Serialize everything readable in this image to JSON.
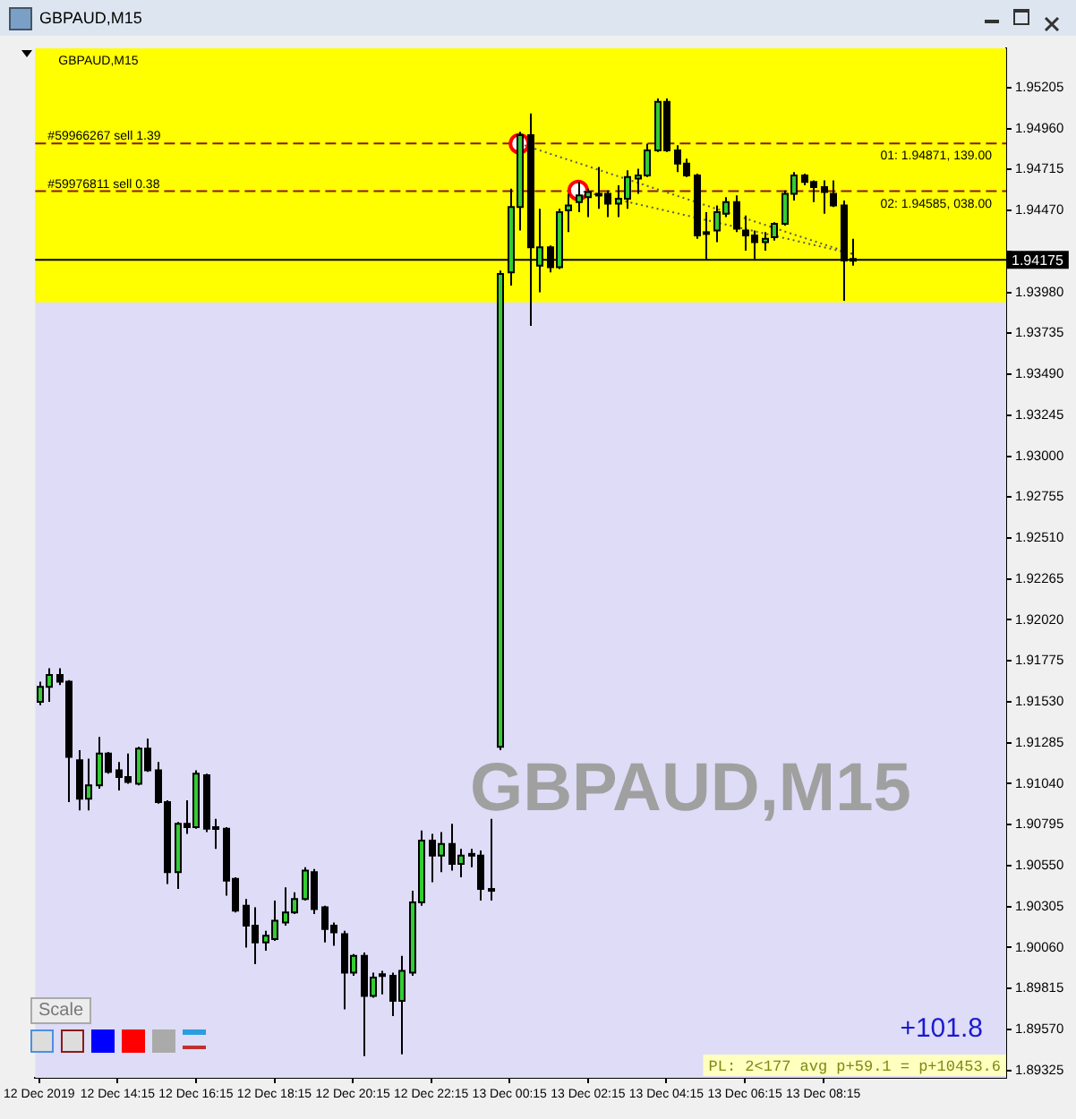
{
  "chart_data": {
    "type": "candlestick",
    "title": "GBPAUD,M15",
    "xlim": [
      "2019-12-12T12:09",
      "2019-12-13T12:55"
    ],
    "xticks": [
      {
        "value": "2019-12-12T12:15",
        "label": "12 Dec 2019"
      },
      {
        "value": "2019-12-12T14:15",
        "label": "12 Dec 14:15"
      },
      {
        "value": "2019-12-12T16:15",
        "label": "12 Dec 16:15"
      },
      {
        "value": "2019-12-12T18:15",
        "label": "12 Dec 18:15"
      },
      {
        "value": "2019-12-12T20:15",
        "label": "12 Dec 20:15"
      },
      {
        "value": "2019-12-12T22:15",
        "label": "12 Dec 22:15"
      },
      {
        "value": "2019-12-13T00:15",
        "label": "13 Dec 00:15"
      },
      {
        "value": "2019-12-13T02:15",
        "label": "13 Dec 02:15"
      },
      {
        "value": "2019-12-13T04:15",
        "label": "13 Dec 04:15"
      },
      {
        "value": "2019-12-13T06:15",
        "label": "13 Dec 06:15"
      },
      {
        "value": "2019-12-13T08:15",
        "label": "13 Dec 08:15"
      }
    ],
    "ylim": [
      1.8928,
      1.9544
    ],
    "yticks": [
      1.95205,
      {
        "value": 1.9496,
        "label": "1.94960"
      },
      1.94715,
      {
        "value": 1.9447,
        "label": "1.94470"
      },
      {
        "value": 1.94225,
        "label": null
      },
      {
        "value": 1.9398,
        "label": "1.93980"
      },
      1.93735,
      {
        "value": 1.9349,
        "label": "1.93490"
      },
      1.93245,
      {
        "value": 1.93,
        "label": "1.93000"
      },
      1.92755,
      {
        "value": 1.9251,
        "label": "1.92510"
      },
      1.92265,
      {
        "value": 1.9202,
        "label": "1.92020"
      },
      1.91775,
      {
        "value": 1.9153,
        "label": "1.91530"
      },
      1.91285,
      {
        "value": 1.9104,
        "label": "1.91040"
      },
      1.90795,
      {
        "value": 1.9055,
        "label": "1.90550"
      },
      1.90305,
      {
        "value": 1.9006,
        "label": "1.90060"
      },
      1.89815,
      {
        "value": 1.8957,
        "label": "1.89570"
      },
      1.89325
    ],
    "grid": false,
    "bands": [
      {
        "axis": "y",
        "from": 1.9392,
        "to": 1.9544,
        "color": "#ffff00"
      }
    ],
    "ref_lines": [
      {
        "axis": "y",
        "value": 1.94871,
        "label": "#59966267 sell 1.39",
        "color": "#8b1a1a",
        "line_style": "dashed"
      },
      {
        "axis": "y",
        "value": 1.94585,
        "label": "#59976811 sell 0.38",
        "color": "#8b1a1a",
        "line_style": "dashed"
      },
      {
        "axis": "y",
        "value": 1.94175,
        "label": "1.94175",
        "color": "#000000",
        "line_style": "solid"
      }
    ],
    "annotations": [
      "GBPAUD,M15",
      "GBPAUD,M15",
      "+101.8",
      "PL: 2<177 avg p+59.1 = p+10453.6",
      "Scale",
      {
        "text": "01: 1.94871, 139.00",
        "y": 1.94871
      },
      {
        "text": "02: 1.94585, 038.00",
        "y": 1.94585
      }
    ],
    "series": [
      {
        "type": "line",
        "color": "#555555",
        "line_style": "dotted",
        "marker": "none",
        "x": [
          "2019-12-13T00:30",
          "2019-12-13T09:00"
        ],
        "values": [
          1.9487,
          1.9421
        ]
      },
      {
        "type": "line",
        "color": "#555555",
        "line_style": "dotted",
        "marker": "none",
        "x": [
          "2019-12-13T02:00",
          "2019-12-13T09:00"
        ],
        "values": [
          1.9459,
          1.9421
        ]
      },
      {
        "type": "scatter",
        "color": "#ff0000",
        "marker": "circle",
        "x": [
          "2019-12-13T00:30",
          "2019-12-13T02:00"
        ],
        "values": [
          1.9487,
          1.9459
        ]
      },
      {
        "type": "candlestick",
        "colors": [
          "#33cc33",
          "#33cc33",
          "#000000",
          "#000000",
          "#000000",
          "#33cc33",
          "#33cc33",
          "#000000",
          "#000000",
          "#000000",
          "#33cc33",
          "#000000",
          "#000000",
          "#000000",
          "#33cc33",
          "#000000",
          "#33cc33",
          "#000000",
          "#000000",
          "#000000",
          "#000000",
          "#000000",
          "#000000",
          "#33cc33",
          "#33cc33",
          "#33cc33",
          "#33cc33",
          "#33cc33",
          "#000000",
          "#000000",
          "#000000",
          "#000000",
          "#33cc33",
          "#000000",
          "#33cc33",
          "#33cc33",
          "#000000",
          "#33cc33",
          "#33cc33",
          "#33cc33",
          "#000000",
          "#33cc33",
          "#000000",
          "#33cc33",
          "#000000",
          "#000000",
          "#000000",
          "#33cc33",
          "#33cc33",
          "#33cc33",
          "#000000",
          "#33cc33",
          "#000000",
          "#33cc33",
          "#33cc33",
          "#33cc33",
          "#33cc33",
          "#000000",
          "#000000",
          "#33cc33",
          "#33cc33",
          "#33cc33",
          "#33cc33",
          "#33cc33",
          "#000000",
          "#000000",
          "#000000",
          "#000000",
          "#000000",
          "#33cc33",
          "#33cc33",
          "#000000",
          "#000000",
          "#000000",
          "#33cc33",
          "#33cc33",
          "#33cc33",
          "#33cc33",
          "#000000",
          "#000000",
          "#000000",
          "#000000",
          "#000000",
          "#000000"
        ],
        "x": [
          "2019-12-12T12:15",
          "2019-12-12T12:30",
          "2019-12-12T12:45",
          "2019-12-12T13:00",
          "2019-12-12T13:15",
          "2019-12-12T13:30",
          "2019-12-12T13:45",
          "2019-12-12T14:00",
          "2019-12-12T14:15",
          "2019-12-12T14:30",
          "2019-12-12T14:45",
          "2019-12-12T15:00",
          "2019-12-12T15:15",
          "2019-12-12T15:30",
          "2019-12-12T15:45",
          "2019-12-12T16:00",
          "2019-12-12T16:15",
          "2019-12-12T16:30",
          "2019-12-12T16:45",
          "2019-12-12T17:00",
          "2019-12-12T17:15",
          "2019-12-12T17:30",
          "2019-12-12T17:45",
          "2019-12-12T18:00",
          "2019-12-12T18:15",
          "2019-12-12T18:30",
          "2019-12-12T18:45",
          "2019-12-12T19:00",
          "2019-12-12T19:15",
          "2019-12-12T19:30",
          "2019-12-12T19:45",
          "2019-12-12T20:00",
          "2019-12-12T20:15",
          "2019-12-12T20:30",
          "2019-12-12T20:45",
          "2019-12-12T21:00",
          "2019-12-12T21:15",
          "2019-12-12T21:30",
          "2019-12-12T21:45",
          "2019-12-12T22:00",
          "2019-12-12T22:15",
          "2019-12-12T22:30",
          "2019-12-12T22:45",
          "2019-12-12T23:00",
          "2019-12-12T23:15",
          "2019-12-12T23:30",
          "2019-12-12T23:45",
          "2019-12-13T00:00",
          "2019-12-13T00:15",
          "2019-12-13T00:30",
          "2019-12-13T00:45",
          "2019-12-13T01:00",
          "2019-12-13T01:15",
          "2019-12-13T01:30",
          "2019-12-13T01:45",
          "2019-12-13T02:00",
          "2019-12-13T02:15",
          "2019-12-13T02:30",
          "2019-12-13T02:45",
          "2019-12-13T03:00",
          "2019-12-13T03:15",
          "2019-12-13T03:30",
          "2019-12-13T03:45",
          "2019-12-13T04:00",
          "2019-12-13T04:15",
          "2019-12-13T04:30",
          "2019-12-13T04:45",
          "2019-12-13T05:00",
          "2019-12-13T05:15",
          "2019-12-13T05:30",
          "2019-12-13T05:45",
          "2019-12-13T06:00",
          "2019-12-13T06:15",
          "2019-12-13T06:30",
          "2019-12-13T06:45",
          "2019-12-13T07:00",
          "2019-12-13T07:15",
          "2019-12-13T07:30",
          "2019-12-13T07:45",
          "2019-12-13T08:00",
          "2019-12-13T08:15",
          "2019-12-13T08:30",
          "2019-12-13T08:45",
          "2019-12-13T09:00"
        ],
        "ohlc": [
          [
            1.9153,
            1.9165,
            1.9151,
            1.9162
          ],
          [
            1.9162,
            1.9173,
            1.9153,
            1.9169
          ],
          [
            1.9169,
            1.9173,
            1.9163,
            1.9165
          ],
          [
            1.9165,
            1.9166,
            1.9093,
            1.912
          ],
          [
            1.9118,
            1.9124,
            1.9088,
            1.9095
          ],
          [
            1.9095,
            1.9119,
            1.9088,
            1.9103
          ],
          [
            1.9103,
            1.9132,
            1.9101,
            1.9122
          ],
          [
            1.9122,
            1.9123,
            1.911,
            1.9111
          ],
          [
            1.9112,
            1.9117,
            1.91,
            1.9108
          ],
          [
            1.9108,
            1.9122,
            1.9104,
            1.9105
          ],
          [
            1.9104,
            1.9126,
            1.9103,
            1.9125
          ],
          [
            1.9125,
            1.9131,
            1.9111,
            1.9112
          ],
          [
            1.9112,
            1.9117,
            1.9092,
            1.9093
          ],
          [
            1.9093,
            1.9094,
            1.9044,
            1.9051
          ],
          [
            1.9051,
            1.9081,
            1.9041,
            1.908
          ],
          [
            1.908,
            1.9094,
            1.9074,
            1.9078
          ],
          [
            1.9078,
            1.9112,
            1.9077,
            1.911
          ],
          [
            1.9109,
            1.911,
            1.9075,
            1.9077
          ],
          [
            1.9078,
            1.9083,
            1.9065,
            1.9077
          ],
          [
            1.9077,
            1.9078,
            1.9037,
            1.9046
          ],
          [
            1.9047,
            1.9048,
            1.9027,
            1.9028
          ],
          [
            1.9031,
            1.9035,
            1.9006,
            1.9019
          ],
          [
            1.9019,
            1.903,
            1.8996,
            1.9009
          ],
          [
            1.9009,
            1.9016,
            1.9004,
            1.9013
          ],
          [
            1.9011,
            1.9034,
            1.901,
            1.9022
          ],
          [
            1.9021,
            1.9042,
            1.9019,
            1.9027
          ],
          [
            1.9027,
            1.9039,
            1.9026,
            1.9035
          ],
          [
            1.9035,
            1.9054,
            1.9034,
            1.9052
          ],
          [
            1.9051,
            1.9053,
            1.9026,
            1.9029
          ],
          [
            1.903,
            1.9031,
            1.9009,
            1.9017
          ],
          [
            1.9019,
            1.9021,
            1.9007,
            1.9015
          ],
          [
            1.9014,
            1.9016,
            1.8969,
            1.8991
          ],
          [
            1.8991,
            1.9002,
            1.8989,
            1.9001
          ],
          [
            1.9001,
            1.9003,
            1.8941,
            1.8977
          ],
          [
            1.8977,
            1.8991,
            1.8976,
            1.8988
          ],
          [
            1.8989,
            1.8992,
            1.8978,
            1.899
          ],
          [
            1.8989,
            1.8991,
            1.8965,
            1.8974
          ],
          [
            1.8974,
            1.9001,
            1.8942,
            1.8992
          ],
          [
            1.8991,
            1.904,
            1.8989,
            1.9033
          ],
          [
            1.9033,
            1.9076,
            1.9031,
            1.907
          ],
          [
            1.907,
            1.9074,
            1.9045,
            1.9061
          ],
          [
            1.9061,
            1.9075,
            1.9051,
            1.9068
          ],
          [
            1.9068,
            1.908,
            1.9052,
            1.9056
          ],
          [
            1.9056,
            1.9065,
            1.9048,
            1.9061
          ],
          [
            1.9062,
            1.9065,
            1.9054,
            1.9061
          ],
          [
            1.9061,
            1.9064,
            1.9034,
            1.9041
          ],
          [
            1.9041,
            1.9083,
            1.9034,
            1.904
          ],
          [
            1.9126,
            1.9411,
            1.9124,
            1.9409
          ],
          [
            1.941,
            1.946,
            1.9402,
            1.9449
          ],
          [
            1.9449,
            1.9494,
            1.9435,
            1.9492
          ],
          [
            1.9492,
            1.9505,
            1.9378,
            1.9425
          ],
          [
            1.9414,
            1.9448,
            1.9398,
            1.9425
          ],
          [
            1.9425,
            1.9426,
            1.941,
            1.9413
          ],
          [
            1.9413,
            1.9448,
            1.9412,
            1.9446
          ],
          [
            1.9447,
            1.9457,
            1.9434,
            1.945
          ],
          [
            1.9452,
            1.9464,
            1.9446,
            1.9456
          ],
          [
            1.9455,
            1.946,
            1.9443,
            1.9458
          ],
          [
            1.9457,
            1.9473,
            1.9448,
            1.9456
          ],
          [
            1.9457,
            1.9459,
            1.9443,
            1.9451
          ],
          [
            1.9451,
            1.9462,
            1.9443,
            1.9454
          ],
          [
            1.9454,
            1.9471,
            1.9448,
            1.9467
          ],
          [
            1.9466,
            1.9472,
            1.9457,
            1.9468
          ],
          [
            1.9468,
            1.9487,
            1.9467,
            1.9483
          ],
          [
            1.9483,
            1.9514,
            1.9482,
            1.9512
          ],
          [
            1.9512,
            1.9514,
            1.9482,
            1.9483
          ],
          [
            1.9483,
            1.9486,
            1.947,
            1.9475
          ],
          [
            1.9475,
            1.9478,
            1.9467,
            1.9468
          ],
          [
            1.9468,
            1.9469,
            1.943,
            1.9432
          ],
          [
            1.9434,
            1.9446,
            1.9417,
            1.9433
          ],
          [
            1.9435,
            1.945,
            1.9428,
            1.9446
          ],
          [
            1.9445,
            1.9455,
            1.9443,
            1.9452
          ],
          [
            1.9452,
            1.9456,
            1.9434,
            1.9436
          ],
          [
            1.9435,
            1.9444,
            1.9423,
            1.9432
          ],
          [
            1.9432,
            1.9435,
            1.9418,
            1.9428
          ],
          [
            1.9428,
            1.9434,
            1.9423,
            1.943
          ],
          [
            1.9431,
            1.944,
            1.9429,
            1.9439
          ],
          [
            1.9439,
            1.9459,
            1.9438,
            1.9457
          ],
          [
            1.9457,
            1.947,
            1.9453,
            1.9468
          ],
          [
            1.9468,
            1.9469,
            1.9462,
            1.9464
          ],
          [
            1.9464,
            1.9465,
            1.9452,
            1.9461
          ],
          [
            1.9461,
            1.9465,
            1.9445,
            1.9458
          ],
          [
            1.9457,
            1.9465,
            1.9449,
            1.945
          ],
          [
            1.945,
            1.9453,
            1.9393,
            1.9417
          ],
          [
            1.9418,
            1.943,
            1.9414,
            1.9417
          ]
        ]
      }
    ]
  }
}
